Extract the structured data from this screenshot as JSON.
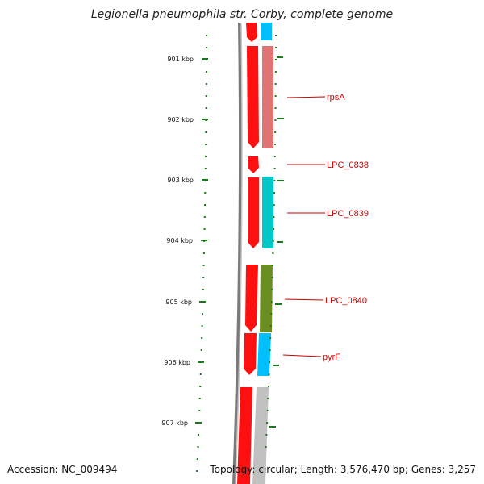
{
  "title": "Legionella pneumophila str. Corby, complete genome",
  "footer": {
    "accession": "Accession: NC_009494",
    "summary": "Topology: circular; Length: 3,576,470 bp; Genes: 3,257"
  },
  "ruler": {
    "ticks": [
      "901 kbp",
      "902 kbp",
      "903 kbp",
      "904 kbp",
      "905 kbp",
      "906 kbp",
      "907 kbp"
    ]
  },
  "genes": [
    {
      "label": "rpsA"
    },
    {
      "label": "LPC_0838"
    },
    {
      "label": "LPC_0839"
    },
    {
      "label": "LPC_0840"
    },
    {
      "label": "pyrF"
    }
  ],
  "colors": {
    "backbone": "#808080",
    "forward_cds": "#ff0000",
    "ruler": "#1a7a1a",
    "label": "#cc0000",
    "cog_cyan": "#00bfff",
    "cog_salmon": "#e07070",
    "cog_teal": "#00c8c8",
    "cog_olive": "#6b8e23",
    "cog_grey": "#c0c0c0"
  }
}
